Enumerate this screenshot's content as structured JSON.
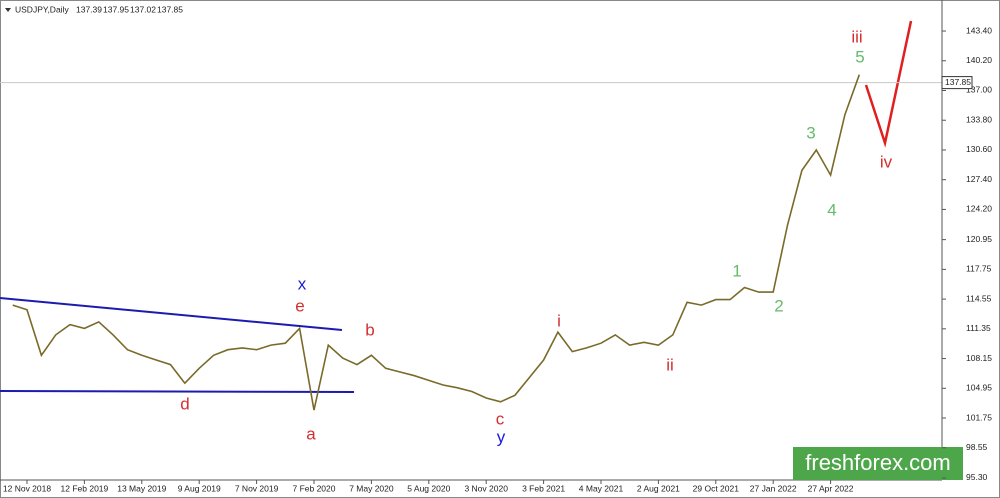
{
  "chart_data": {
    "type": "line",
    "symbol": "USDJPY,Daily",
    "ohlc": [
      137.39,
      137.95,
      137.02,
      137.85
    ],
    "categories": [
      null,
      "12 Nov 2018",
      null,
      null,
      null,
      "12 Feb 2019",
      null,
      null,
      null,
      "13 May 2019",
      null,
      null,
      null,
      "9 Aug 2019",
      null,
      null,
      null,
      "7 Nov 2019",
      null,
      null,
      null,
      "7 Feb 2020",
      null,
      null,
      null,
      "7 May 2020",
      null,
      null,
      null,
      "5 Aug 2020",
      null,
      null,
      null,
      "3 Nov 2020",
      null,
      null,
      null,
      "3 Feb 2021",
      null,
      null,
      null,
      "4 May 2021",
      null,
      null,
      null,
      "2 Aug 2021",
      null,
      null,
      null,
      "29 Oct 2021",
      null,
      null,
      null,
      "27 Jan 2022",
      null,
      null,
      null,
      "27 Apr 2022",
      null,
      null
    ],
    "values": [
      113.9,
      113.4,
      108.5,
      110.7,
      111.8,
      111.4,
      112.1,
      110.7,
      109.1,
      108.5,
      108.0,
      107.5,
      105.5,
      107.1,
      108.5,
      109.1,
      109.3,
      109.1,
      109.6,
      109.8,
      111.4,
      102.6,
      109.6,
      108.2,
      107.5,
      108.5,
      107.1,
      106.7,
      106.3,
      105.8,
      105.3,
      105.0,
      104.6,
      103.9,
      103.5,
      104.2,
      106.1,
      108.0,
      111.0,
      108.9,
      109.3,
      109.8,
      110.7,
      109.6,
      109.9,
      109.6,
      110.7,
      114.2,
      113.9,
      114.5,
      114.5,
      115.8,
      115.3,
      115.3,
      122.5,
      128.4,
      130.6,
      127.9,
      134.4,
      138.7
    ],
    "color": "#7a6a2a",
    "last_price": 137.85,
    "ylim": [
      95.08,
      146.74
    ],
    "yticks": [
      {
        "value": 143.4,
        "label": "143.40"
      },
      {
        "value": 140.2,
        "label": "140.20"
      },
      {
        "value": 137.0,
        "label": "137.00"
      },
      {
        "value": 133.8,
        "label": "133.80"
      },
      {
        "value": 130.6,
        "label": "130.60"
      },
      {
        "value": 127.4,
        "label": "127.40"
      },
      {
        "value": 124.2,
        "label": "124.20"
      },
      120.95,
      117.75,
      114.55,
      111.35,
      108.15,
      104.95,
      101.75,
      98.55,
      {
        "value": 95.3,
        "label": "95.30"
      }
    ],
    "annotations": [
      {
        "text": "iii",
        "color": "#d32f2f"
      },
      {
        "text": "5",
        "color": "#66bb6a"
      },
      {
        "text": "iv",
        "color": "#d32f2f"
      },
      {
        "text": "3",
        "color": "#66bb6a"
      },
      {
        "text": "4",
        "color": "#66bb6a"
      },
      {
        "text": "1",
        "color": "#66bb6a"
      },
      {
        "text": "2",
        "color": "#66bb6a"
      },
      {
        "text": "i",
        "color": "#d32f2f"
      },
      {
        "text": "ii",
        "color": "#d32f2f"
      },
      {
        "text": "b",
        "color": "#d32f2f"
      },
      {
        "text": "e",
        "color": "#d32f2f"
      },
      {
        "text": "x",
        "color": "#1a1adb"
      },
      {
        "text": "a",
        "color": "#d32f2f"
      },
      {
        "text": "d",
        "color": "#d32f2f"
      },
      {
        "text": "c",
        "color": "#d32f2f"
      },
      {
        "text": "y",
        "color": "#1a1adb"
      }
    ],
    "watermark": "freshforex.com"
  }
}
